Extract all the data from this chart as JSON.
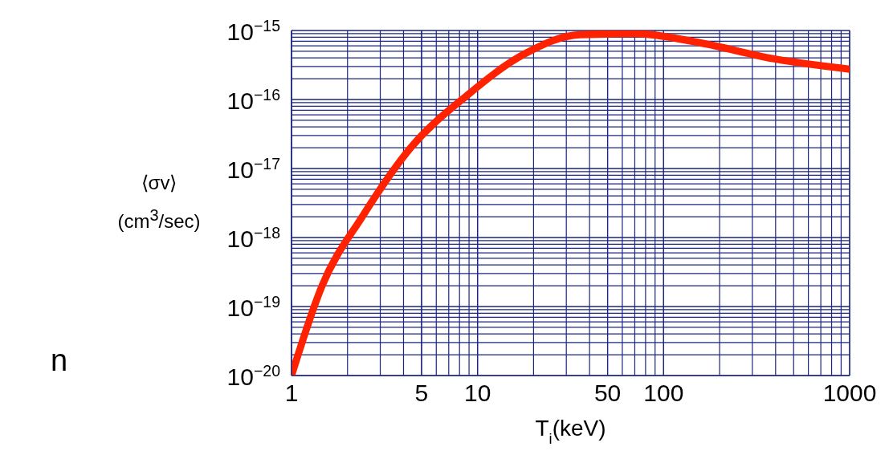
{
  "chart_data": {
    "type": "line",
    "xlabel": "T$_{i}$(keV)",
    "ylabel": "⟨σv⟩\n(cm$^{3}$/sec)",
    "log": "xy",
    "grid": true,
    "marker": "none",
    "line_style": "solid",
    "x": [
      1,
      1.46,
      2.4,
      4.37,
      8.8,
      17.7,
      35.5,
      71,
      158,
      388,
      1000
    ],
    "series": [
      {
        "color": "#ff2200",
        "values": [
          1e-20,
          2e-19,
          2e-18,
          2e-17,
          1.15e-16,
          4.5e-16,
          8.7e-16,
          9e-16,
          6.6e-16,
          3.9e-16,
          2.75e-16
        ]
      }
    ],
    "xlim": [
      1,
      1000
    ],
    "xticks": [
      1,
      5,
      10,
      50,
      100,
      1000
    ],
    "ylim": [
      1e-20,
      1e-15
    ],
    "yticks": [
      {
        "value": 1e-20,
        "label": "10$^{−20}$"
      },
      {
        "value": 1e-19,
        "label": "10$^{−19}$"
      },
      {
        "value": 1e-18,
        "label": "10$^{−18}$"
      },
      {
        "value": 1e-17,
        "label": "10$^{−17}$"
      },
      {
        "value": 1e-16,
        "label": "10$^{−16}$"
      },
      {
        "value": 1e-15,
        "label": "10$^{−15}$"
      }
    ],
    "annotations": [
      "n"
    ]
  }
}
